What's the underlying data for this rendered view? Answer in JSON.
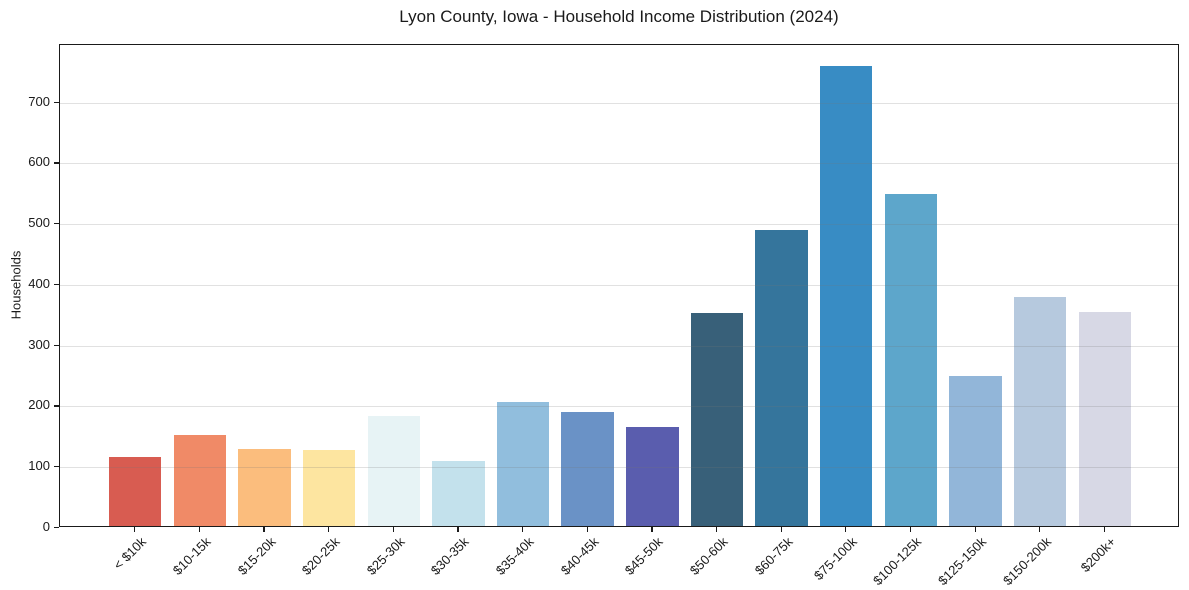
{
  "chart_data": {
    "type": "bar",
    "title": "Lyon County, Iowa - Household Income Distribution (2024)",
    "xlabel": "",
    "ylabel": "Households",
    "categories": [
      "< $10k",
      "$10-15k",
      "$15-20k",
      "$20-25k",
      "$25-30k",
      "$30-35k",
      "$35-40k",
      "$40-45k",
      "$45-50k",
      "$50-60k",
      "$60-75k",
      "$75-100k",
      "$100-125k",
      "$125-150k",
      "$150-200k",
      "$200k+"
    ],
    "values": [
      114,
      150,
      127,
      125,
      181,
      107,
      204,
      188,
      163,
      350,
      488,
      757,
      546,
      247,
      377,
      352
    ],
    "bar_colors": [
      "#d85c51",
      "#f08a67",
      "#fbbd7d",
      "#fde5a0",
      "#e7f3f5",
      "#c3e1ec",
      "#91bedd",
      "#6a92c6",
      "#5a5dae",
      "#386079",
      "#35759c",
      "#388cc4",
      "#5da6cb",
      "#92b6d9",
      "#b6c9de",
      "#d7d8e5"
    ],
    "ylim": [
      0,
      795
    ],
    "yticks": [
      0,
      100,
      200,
      300,
      400,
      500,
      600,
      700
    ],
    "grid": "horizontal gridlines at each ytick, drawn over bars",
    "legend": "none",
    "background_color": "#ffffff",
    "spine_color": "#1a1a1a"
  }
}
